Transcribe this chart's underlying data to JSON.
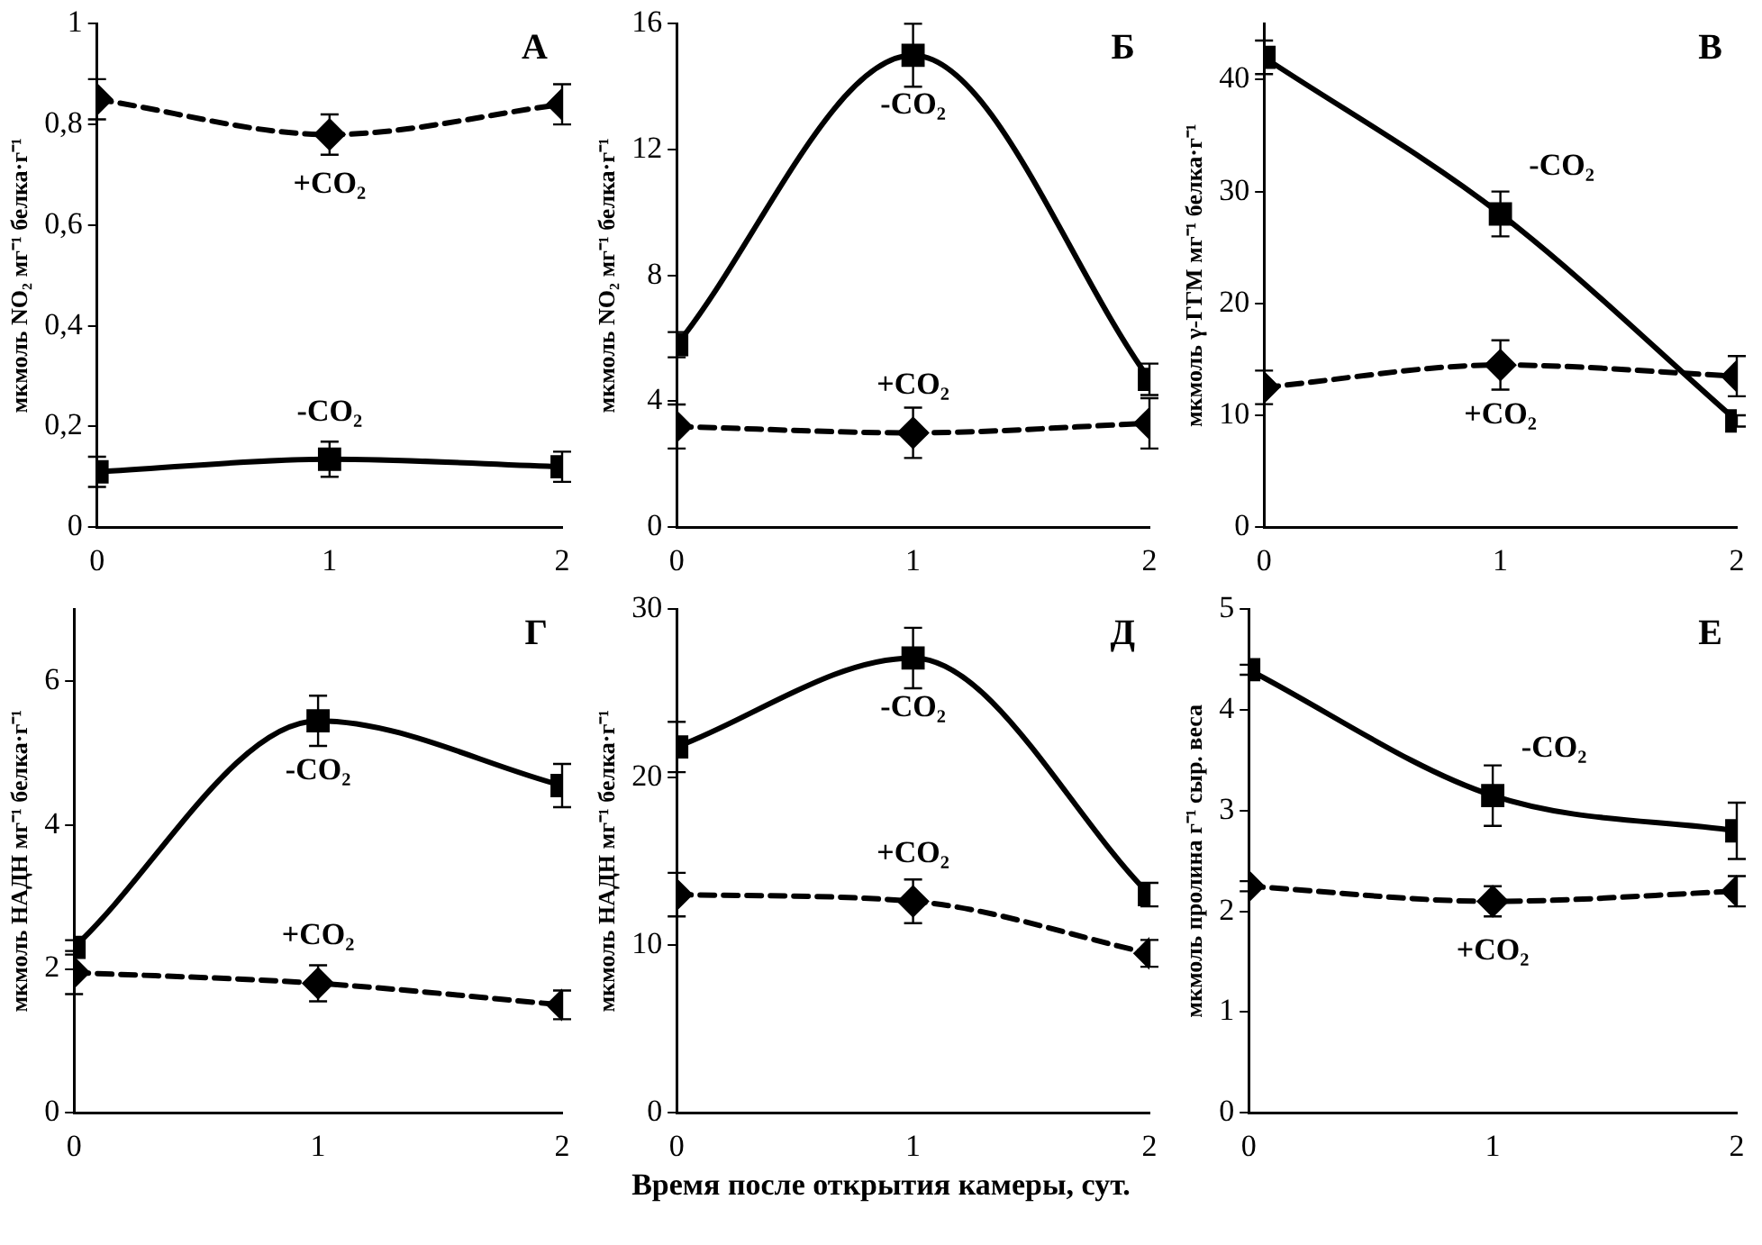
{
  "chart_data": [
    {
      "type": "line",
      "title": "А",
      "ylabel": "мкмоль NO₂ мг⁻¹ белка·г⁻¹",
      "x": [
        0,
        1,
        2
      ],
      "xlim": [
        0,
        2
      ],
      "xticks": [
        0,
        1,
        2
      ],
      "ylim": [
        0,
        1
      ],
      "yticks": [
        0,
        {
          "value": 0.2,
          "label": "0,2"
        },
        {
          "value": 0.4,
          "label": "0,4"
        },
        {
          "value": 0.6,
          "label": "0,6"
        },
        {
          "value": 0.8,
          "label": "0,8"
        },
        1
      ],
      "grid": false,
      "legend": false,
      "series": [
        {
          "name": "+CO₂",
          "color": "#000000",
          "values": [
            0.85,
            0.78,
            0.84
          ],
          "errors": [
            0.04,
            0.04,
            0.04
          ],
          "marker": "diamond",
          "line_style": "dashed"
        },
        {
          "name": "-CO₂",
          "color": "#000000",
          "values": [
            0.11,
            0.135,
            0.12
          ],
          "errors": [
            0.03,
            0.035,
            0.03
          ],
          "marker": "square",
          "line_style": "solid"
        }
      ]
    },
    {
      "type": "line",
      "title": "Б",
      "ylabel": "мкмоль NO₂ мг⁻¹ белка·г⁻¹",
      "x": [
        0,
        1,
        2
      ],
      "xlim": [
        0,
        2
      ],
      "xticks": [
        0,
        1,
        2
      ],
      "ylim": [
        0,
        16
      ],
      "yticks": [
        0,
        4,
        8,
        12,
        16
      ],
      "grid": false,
      "legend": false,
      "series": [
        {
          "name": "-CO₂",
          "color": "#000000",
          "values": [
            5.8,
            15,
            4.7
          ],
          "errors": [
            0.4,
            1,
            0.5
          ],
          "marker": "square",
          "line_style": "solid"
        },
        {
          "name": "+CO₂",
          "color": "#000000",
          "values": [
            3.2,
            3.0,
            3.3
          ],
          "errors": [
            0.7,
            0.8,
            0.8
          ],
          "marker": "diamond",
          "line_style": "dashed"
        }
      ]
    },
    {
      "type": "line",
      "title": "В",
      "ylabel": "мкмоль γ-ГГМ мг⁻¹ белка·г⁻¹",
      "x": [
        0,
        1,
        2
      ],
      "xlim": [
        0,
        2
      ],
      "xticks": [
        0,
        1,
        2
      ],
      "ylim": [
        0,
        45
      ],
      "yticks": [
        0,
        10,
        20,
        30,
        40
      ],
      "grid": false,
      "legend": false,
      "series": [
        {
          "name": "-CO₂",
          "color": "#000000",
          "values": [
            42,
            28,
            9.5
          ],
          "errors": [
            1.5,
            2,
            0.5
          ],
          "marker": "square",
          "line_style": "solid"
        },
        {
          "name": "+CO₂",
          "color": "#000000",
          "values": [
            12.5,
            14.5,
            13.5
          ],
          "errors": [
            1.5,
            2.2,
            1.8
          ],
          "marker": "diamond",
          "line_style": "dashed"
        }
      ]
    },
    {
      "type": "line",
      "title": "Г",
      "ylabel": "мкмоль НАДН мг⁻¹ белка·г⁻¹",
      "x": [
        0,
        1,
        2
      ],
      "xlim": [
        0,
        2
      ],
      "xticks": [
        0,
        1,
        2
      ],
      "ylim": [
        0,
        7
      ],
      "yticks": [
        0,
        2,
        4,
        6
      ],
      "grid": false,
      "legend": false,
      "series": [
        {
          "name": "-CO₂",
          "color": "#000000",
          "values": [
            2.3,
            5.45,
            4.55
          ],
          "errors": [
            0.1,
            0.35,
            0.3
          ],
          "marker": "square",
          "line_style": "solid"
        },
        {
          "name": "+CO₂",
          "color": "#000000",
          "values": [
            1.95,
            1.8,
            1.5
          ],
          "errors": [
            0.3,
            0.25,
            0.2
          ],
          "marker": "diamond",
          "line_style": "dashed"
        }
      ]
    },
    {
      "type": "line",
      "title": "Д",
      "ylabel": "мкмоль НАДН мг⁻¹ белка·г⁻¹",
      "xlabel": "Время после открытия камеры, сут.",
      "x": [
        0,
        1,
        2
      ],
      "xlim": [
        0,
        2
      ],
      "xticks": [
        0,
        1,
        2
      ],
      "ylim": [
        0,
        30
      ],
      "yticks": [
        0,
        10,
        20,
        30
      ],
      "grid": false,
      "legend": false,
      "series": [
        {
          "name": "-CO₂",
          "color": "#000000",
          "values": [
            21.8,
            27.1,
            13
          ],
          "errors": [
            1.5,
            1.8,
            0.7
          ],
          "marker": "square",
          "line_style": "solid"
        },
        {
          "name": "+CO₂",
          "color": "#000000",
          "values": [
            13,
            12.6,
            9.5
          ],
          "errors": [
            1.3,
            1.3,
            0.8
          ],
          "marker": "diamond",
          "line_style": "dashed"
        }
      ]
    },
    {
      "type": "line",
      "title": "Е",
      "ylabel": "мкмоль пролина г⁻¹ сыр. веса",
      "x": [
        0,
        1,
        2
      ],
      "xlim": [
        0,
        2
      ],
      "xticks": [
        0,
        1,
        2
      ],
      "ylim": [
        0,
        5
      ],
      "yticks": [
        0,
        1,
        2,
        3,
        4,
        5
      ],
      "grid": false,
      "legend": false,
      "series": [
        {
          "name": "-CO₂",
          "color": "#000000",
          "values": [
            4.4,
            3.15,
            2.8
          ],
          "errors": [
            0.05,
            0.3,
            0.28
          ],
          "marker": "square",
          "line_style": "solid"
        },
        {
          "name": "+CO₂",
          "color": "#000000",
          "values": [
            2.25,
            2.1,
            2.2
          ],
          "errors": [
            0.05,
            0.15,
            0.15
          ],
          "marker": "diamond",
          "line_style": "dashed"
        }
      ]
    }
  ]
}
